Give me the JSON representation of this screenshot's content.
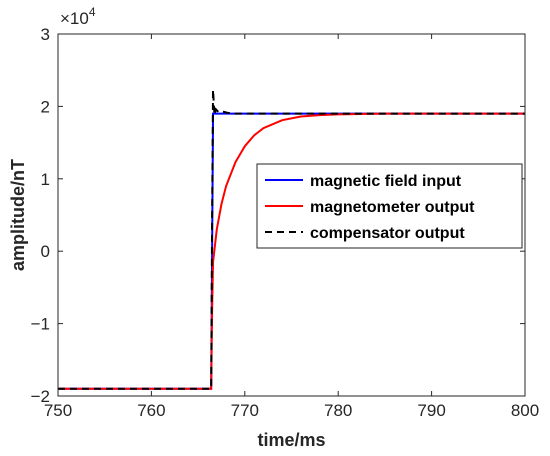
{
  "chart_data": {
    "type": "line",
    "title": "",
    "xlabel": "time/ms",
    "ylabel": "amplitude/nT",
    "y_multiplier_label": "×10",
    "y_multiplier_exponent": "4",
    "xlim": [
      750,
      800
    ],
    "ylim": [
      -2,
      3
    ],
    "y_scale": 10000,
    "x_ticks": [
      750,
      760,
      770,
      780,
      790,
      800
    ],
    "x_tick_labels": [
      "750",
      "760",
      "770",
      "780",
      "790",
      "800"
    ],
    "y_ticks": [
      -2,
      -1,
      0,
      1,
      2,
      3
    ],
    "y_tick_labels": [
      "−2",
      "−1",
      "0",
      "1",
      "2",
      "3"
    ],
    "grid": false,
    "legend_position": "center-right",
    "series": [
      {
        "name": "magnetic field input",
        "color": "#0000ff",
        "style": "solid",
        "x": [
          750,
          766.4,
          766.6,
          800
        ],
        "y": [
          -19000,
          -19000,
          19000,
          19000
        ]
      },
      {
        "name": "magnetometer output",
        "color": "#ff0000",
        "style": "solid",
        "x": [
          750,
          766.4,
          766.5,
          766.6,
          767,
          767.5,
          768,
          769,
          770,
          771,
          772,
          774,
          776,
          778,
          780,
          785,
          790,
          800
        ],
        "y": [
          -19000,
          -19000,
          -8000,
          -1500,
          3000,
          6500,
          9000,
          12300,
          14500,
          16000,
          17000,
          18100,
          18600,
          18800,
          18900,
          19000,
          19000,
          19000
        ]
      },
      {
        "name": "compensator output",
        "color": "#000000",
        "style": "dashed",
        "x": [
          750,
          766.4,
          766.5,
          766.6,
          766.75,
          766.9,
          767.2,
          767.6,
          768.2,
          769,
          800
        ],
        "y": [
          -19000,
          -19000,
          5000,
          22300,
          18800,
          19600,
          19200,
          19300,
          19100,
          19000,
          19000
        ]
      }
    ]
  }
}
